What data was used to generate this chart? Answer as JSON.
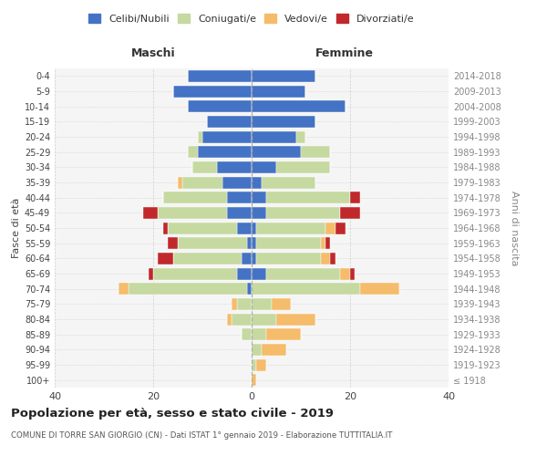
{
  "age_groups": [
    "100+",
    "95-99",
    "90-94",
    "85-89",
    "80-84",
    "75-79",
    "70-74",
    "65-69",
    "60-64",
    "55-59",
    "50-54",
    "45-49",
    "40-44",
    "35-39",
    "30-34",
    "25-29",
    "20-24",
    "15-19",
    "10-14",
    "5-9",
    "0-4"
  ],
  "birth_years": [
    "≤ 1918",
    "1919-1923",
    "1924-1928",
    "1929-1933",
    "1934-1938",
    "1939-1943",
    "1944-1948",
    "1949-1953",
    "1954-1958",
    "1959-1963",
    "1964-1968",
    "1969-1973",
    "1974-1978",
    "1979-1983",
    "1984-1988",
    "1989-1993",
    "1994-1998",
    "1999-2003",
    "2004-2008",
    "2009-2013",
    "2014-2018"
  ],
  "males": {
    "celibi": [
      0,
      0,
      0,
      0,
      0,
      0,
      1,
      3,
      2,
      1,
      3,
      5,
      5,
      6,
      7,
      11,
      10,
      9,
      13,
      16,
      13
    ],
    "coniugati": [
      0,
      0,
      0,
      2,
      4,
      3,
      24,
      17,
      14,
      14,
      14,
      14,
      13,
      8,
      5,
      2,
      1,
      0,
      0,
      0,
      0
    ],
    "vedovi": [
      0,
      0,
      0,
      0,
      1,
      1,
      2,
      0,
      0,
      0,
      0,
      0,
      0,
      1,
      0,
      0,
      0,
      0,
      0,
      0,
      0
    ],
    "divorziati": [
      0,
      0,
      0,
      0,
      0,
      0,
      0,
      1,
      3,
      2,
      1,
      3,
      0,
      0,
      0,
      0,
      0,
      0,
      0,
      0,
      0
    ]
  },
  "females": {
    "nubili": [
      0,
      0,
      0,
      0,
      0,
      0,
      0,
      3,
      1,
      1,
      1,
      3,
      3,
      2,
      5,
      10,
      9,
      13,
      19,
      11,
      13
    ],
    "coniugate": [
      0,
      1,
      2,
      3,
      5,
      4,
      22,
      15,
      13,
      13,
      14,
      15,
      17,
      11,
      11,
      6,
      2,
      0,
      0,
      0,
      0
    ],
    "vedove": [
      1,
      2,
      5,
      7,
      8,
      4,
      8,
      2,
      2,
      1,
      2,
      0,
      0,
      0,
      0,
      0,
      0,
      0,
      0,
      0,
      0
    ],
    "divorziate": [
      0,
      0,
      0,
      0,
      0,
      0,
      0,
      1,
      1,
      1,
      2,
      4,
      2,
      0,
      0,
      0,
      0,
      0,
      0,
      0,
      0
    ]
  },
  "color_celibi": "#4472c4",
  "color_coniugati": "#c5d9a0",
  "color_vedovi": "#f4bc6b",
  "color_divorziati": "#c0282c",
  "bg_color": "#f5f5f5",
  "grid_color": "#cccccc",
  "title": "Popolazione per età, sesso e stato civile - 2019",
  "subtitle": "COMUNE DI TORRE SAN GIORGIO (CN) - Dati ISTAT 1° gennaio 2019 - Elaborazione TUTTITALIA.IT",
  "xlabel_left": "Maschi",
  "xlabel_right": "Femmine",
  "ylabel_left": "Fasce di età",
  "ylabel_right": "Anni di nascita",
  "xlim": 40
}
